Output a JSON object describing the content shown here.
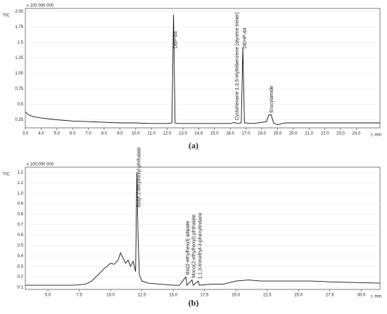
{
  "chart_data": [
    {
      "type": "line",
      "caption": "(a)",
      "ylabel": "TIC",
      "y_scale_label": "x 100 000 000",
      "xlabel": "t, min",
      "xlim": [
        3,
        25.5
      ],
      "ylim": [
        0.12,
        2.05
      ],
      "xticks": [
        {
          "value": 3,
          "label": "3.0"
        },
        {
          "value": 4,
          "label": "4.0"
        },
        {
          "value": 5,
          "label": "5.0"
        },
        {
          "value": 6,
          "label": "6.0"
        },
        {
          "value": 7,
          "label": "7.0"
        },
        {
          "value": 8,
          "label": "8.0"
        },
        {
          "value": 9,
          "label": "9.0"
        },
        {
          "value": 10,
          "label": "10.0"
        },
        {
          "value": 11,
          "label": "11.0"
        },
        {
          "value": 12,
          "label": "12.0"
        },
        {
          "value": 13,
          "label": "13.0"
        },
        {
          "value": 14,
          "label": "14.0"
        },
        {
          "value": 15,
          "label": "15.0"
        },
        {
          "value": 16,
          "label": "16.0"
        },
        {
          "value": 17,
          "label": "17.0"
        },
        {
          "value": 18,
          "label": "18.0"
        },
        {
          "value": 19,
          "label": "19.0"
        },
        {
          "value": 20,
          "label": "20.0"
        },
        {
          "value": 21,
          "label": "21.0"
        },
        {
          "value": 22,
          "label": "22.0"
        },
        {
          "value": 23,
          "label": "23.0"
        },
        {
          "value": 24,
          "label": "24.0"
        }
      ],
      "yticks": [
        0.25,
        0.5,
        0.75,
        {
          "value": 1,
          "label": "1.00"
        },
        1.25,
        1.5,
        1.75,
        {
          "value": 2,
          "label": "2.00"
        }
      ],
      "x": [
        3.0,
        3.2,
        3.5,
        4,
        5,
        6,
        7,
        8,
        9,
        10,
        11,
        12,
        12.3,
        12.4,
        12.5,
        12.7,
        14,
        16,
        16.3,
        16.4,
        16.7,
        16.8,
        16.9,
        17.5,
        18.3,
        18.45,
        18.6,
        18.75,
        19,
        19.3,
        19.5,
        20,
        22,
        24,
        25.5
      ],
      "series": [
        {
          "color": "#111111",
          "values": [
            0.38,
            0.33,
            0.3,
            0.28,
            0.25,
            0.23,
            0.22,
            0.21,
            0.2,
            0.2,
            0.19,
            0.19,
            0.2,
            1.95,
            0.2,
            0.19,
            0.19,
            0.19,
            0.21,
            0.19,
            0.2,
            1.42,
            0.2,
            0.19,
            0.22,
            0.33,
            0.33,
            0.2,
            0.17,
            0.19,
            0.2,
            0.2,
            0.2,
            0.2,
            0.2
          ]
        }
      ],
      "annotations": [
        {
          "text": "DBP-d4",
          "x": 12.4
        },
        {
          "text": "Cyclohexane-1,3,5-triyltribenzene (styrene trimer)",
          "x": 16.3
        },
        {
          "text": "DEHP-d4",
          "x": 16.8
        },
        {
          "text": "Erucylamide",
          "x": 18.5
        }
      ]
    },
    {
      "type": "line",
      "caption": "(b)",
      "ylabel": "TIC",
      "y_scale_label": "x 100 000 000",
      "xlabel": "t, min",
      "xlim": [
        3.2,
        31.5
      ],
      "ylim": [
        0.08,
        1.25
      ],
      "xticks": [
        {
          "value": 5,
          "label": "5.0"
        },
        {
          "value": 7.5,
          "label": "7.5"
        },
        {
          "value": 10,
          "label": "10.0"
        },
        {
          "value": 12.5,
          "label": "12.5"
        },
        {
          "value": 15,
          "label": "15.0"
        },
        {
          "value": 17.5,
          "label": "17.5"
        },
        {
          "value": 20,
          "label": "20.0"
        },
        {
          "value": 22.5,
          "label": "22.5"
        },
        {
          "value": 25,
          "label": "25.0"
        },
        {
          "value": 27.5,
          "label": "27.5"
        },
        {
          "value": 30,
          "label": "30.0"
        }
      ],
      "yticks": [
        0.1,
        0.2,
        0.3,
        0.4,
        0.5,
        0.6,
        0.7,
        0.8,
        0.9,
        {
          "value": 1,
          "label": "1.0"
        },
        1.1,
        1.2
      ],
      "x": [
        3.2,
        5,
        7,
        8,
        8.5,
        9,
        9.5,
        10,
        10.3,
        10.6,
        10.8,
        11,
        11.2,
        11.4,
        11.6,
        11.8,
        12,
        12.1,
        12.2,
        12.3,
        12.5,
        13,
        14,
        15,
        15.5,
        16,
        16.1,
        16.5,
        16.6,
        17,
        17.1,
        18,
        19,
        20,
        21,
        22,
        24,
        26,
        28,
        31.5
      ],
      "series": [
        {
          "color": "#111111",
          "values": [
            0.12,
            0.12,
            0.12,
            0.13,
            0.16,
            0.22,
            0.28,
            0.33,
            0.32,
            0.36,
            0.43,
            0.38,
            0.33,
            0.36,
            0.3,
            0.35,
            0.25,
            1.2,
            0.55,
            0.22,
            0.16,
            0.14,
            0.13,
            0.12,
            0.12,
            0.2,
            0.12,
            0.17,
            0.12,
            0.16,
            0.12,
            0.13,
            0.13,
            0.16,
            0.17,
            0.16,
            0.16,
            0.16,
            0.15,
            0.14
          ]
        }
      ],
      "annotations": [
        {
          "text": "Butyl 2-ethylhexyl phthalate",
          "x": 12.1
        },
        {
          "text": "Bis(2-ethylhexyl) adipate",
          "x": 16
        },
        {
          "text": "Mono(2-ethylhexyl) phthalate",
          "x": 16.5
        },
        {
          "text": "1,1,3-trimethyl-3-phenylindane",
          "x": 17
        }
      ]
    }
  ]
}
